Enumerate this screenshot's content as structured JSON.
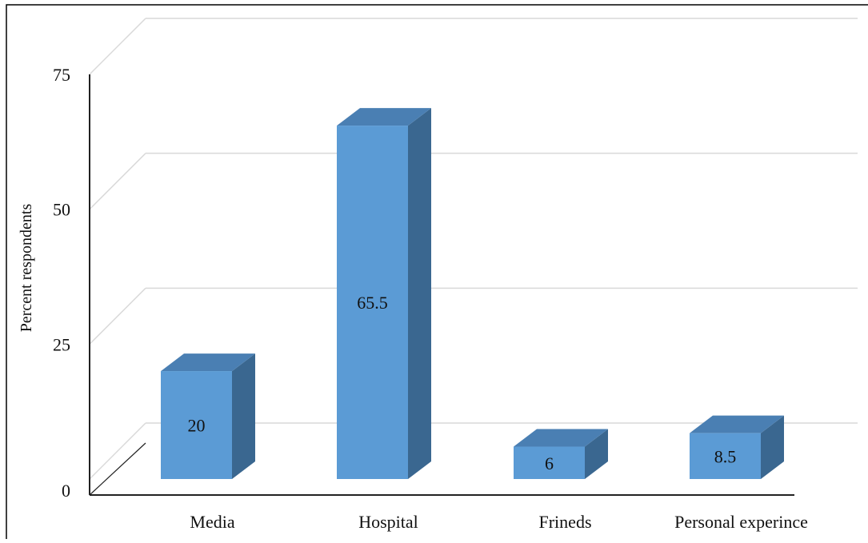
{
  "chart_data": {
    "type": "bar",
    "style": "3d-column",
    "categories": [
      "Media",
      "Hospital",
      "Frineds",
      "Personal experince"
    ],
    "values": [
      20,
      65.5,
      6,
      8.5
    ],
    "data_labels": [
      "20",
      "65.5",
      "6",
      "8.5"
    ],
    "ylabel": "Percent respondents",
    "ylim": [
      0,
      75
    ],
    "yticks": [
      "0",
      "25",
      "50",
      "75"
    ],
    "grid": true,
    "legend": "none"
  },
  "colors": {
    "bar_front": "#5b9bd5",
    "bar_side": "#3a6790",
    "bar_top": "#4a7fb3",
    "gridline": "#d9d9d9",
    "axis": "#222222",
    "border": "#000000"
  }
}
